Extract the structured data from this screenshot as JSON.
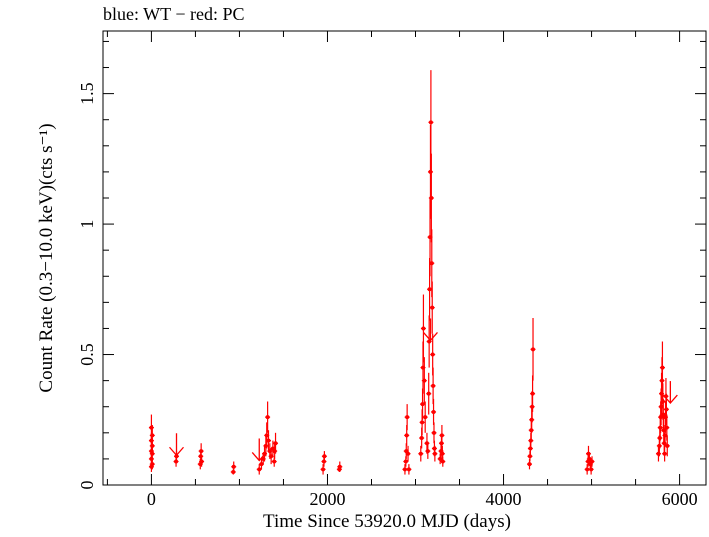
{
  "chart_data": {
    "type": "scatter",
    "title": "blue: WT − red: PC",
    "xlabel": "Time Since 53920.0 MJD (days)",
    "ylabel": "Count Rate (0.3−10.0 keV)(cts s⁻¹)",
    "xlim": [
      -550,
      6300
    ],
    "ylim": [
      0,
      1.74
    ],
    "x_ticks": [
      0,
      2000,
      4000,
      6000
    ],
    "x_tick_labels": [
      "0",
      "2000",
      "4000",
      "6000"
    ],
    "y_ticks": [
      0,
      0.5,
      1,
      1.5
    ],
    "y_tick_labels": [
      "0",
      "0.5",
      "1",
      "1.5"
    ],
    "grid": false,
    "colors": {
      "PC": "#ff0000",
      "WT": "#0000ff"
    },
    "series": [
      {
        "name": "PC",
        "color": "#ff0000",
        "points": [
          [
            0,
            0.07,
            0.02
          ],
          [
            0,
            0.1,
            0.02
          ],
          [
            0,
            0.13,
            0.03
          ],
          [
            0,
            0.17,
            0.03
          ],
          [
            0,
            0.22,
            0.05
          ],
          [
            10,
            0.08,
            0.02
          ],
          [
            10,
            0.12,
            0.03
          ],
          [
            10,
            0.15,
            0.03
          ],
          [
            10,
            0.19,
            0.04
          ],
          [
            280,
            0.09,
            0.02
          ],
          [
            285,
            0.11,
            0.02
          ],
          [
            555,
            0.08,
            0.02
          ],
          [
            560,
            0.11,
            0.02
          ],
          [
            565,
            0.13,
            0.03
          ],
          [
            570,
            0.09,
            0.02
          ],
          [
            930,
            0.05,
            0.01
          ],
          [
            935,
            0.07,
            0.02
          ],
          [
            1225,
            0.06,
            0.02
          ],
          [
            1250,
            0.08,
            0.02
          ],
          [
            1270,
            0.1,
            0.02
          ],
          [
            1285,
            0.12,
            0.03
          ],
          [
            1300,
            0.15,
            0.04
          ],
          [
            1310,
            0.19,
            0.05
          ],
          [
            1320,
            0.26,
            0.06
          ],
          [
            1330,
            0.17,
            0.04
          ],
          [
            1345,
            0.13,
            0.03
          ],
          [
            1360,
            0.11,
            0.03
          ],
          [
            1380,
            0.14,
            0.03
          ],
          [
            1395,
            0.09,
            0.02
          ],
          [
            1400,
            0.13,
            0.03
          ],
          [
            1410,
            0.16,
            0.04
          ],
          [
            1950,
            0.06,
            0.02
          ],
          [
            1960,
            0.09,
            0.02
          ],
          [
            1965,
            0.11,
            0.02
          ],
          [
            2135,
            0.06,
            0.01
          ],
          [
            2140,
            0.07,
            0.02
          ],
          [
            2880,
            0.06,
            0.02
          ],
          [
            2890,
            0.09,
            0.02
          ],
          [
            2895,
            0.13,
            0.03
          ],
          [
            2900,
            0.19,
            0.04
          ],
          [
            2905,
            0.26,
            0.05
          ],
          [
            2915,
            0.12,
            0.03
          ],
          [
            2925,
            0.06,
            0.02
          ],
          [
            3060,
            0.12,
            0.03
          ],
          [
            3070,
            0.18,
            0.04
          ],
          [
            3075,
            0.24,
            0.05
          ],
          [
            3080,
            0.31,
            0.06
          ],
          [
            3085,
            0.45,
            0.1
          ],
          [
            3090,
            0.6,
            0.13
          ],
          [
            3100,
            0.4,
            0.09
          ],
          [
            3110,
            0.26,
            0.06
          ],
          [
            3130,
            0.16,
            0.04
          ],
          [
            3140,
            0.13,
            0.03
          ],
          [
            3150,
            0.35,
            0.08
          ],
          [
            3155,
            0.55,
            0.1
          ],
          [
            3160,
            0.75,
            0.12
          ],
          [
            3165,
            0.95,
            0.15
          ],
          [
            3170,
            1.2,
            0.18
          ],
          [
            3175,
            1.39,
            0.2
          ],
          [
            3180,
            1.1,
            0.17
          ],
          [
            3185,
            0.85,
            0.13
          ],
          [
            3190,
            0.68,
            0.1
          ],
          [
            3195,
            0.5,
            0.08
          ],
          [
            3200,
            0.38,
            0.07
          ],
          [
            3205,
            0.28,
            0.05
          ],
          [
            3210,
            0.2,
            0.04
          ],
          [
            3215,
            0.14,
            0.03
          ],
          [
            3220,
            0.12,
            0.03
          ],
          [
            3280,
            0.1,
            0.02
          ],
          [
            3290,
            0.13,
            0.03
          ],
          [
            3295,
            0.16,
            0.03
          ],
          [
            3300,
            0.19,
            0.04
          ],
          [
            3305,
            0.12,
            0.03
          ],
          [
            3310,
            0.09,
            0.02
          ],
          [
            4295,
            0.08,
            0.02
          ],
          [
            4300,
            0.11,
            0.02
          ],
          [
            4305,
            0.14,
            0.03
          ],
          [
            4310,
            0.17,
            0.03
          ],
          [
            4315,
            0.21,
            0.04
          ],
          [
            4320,
            0.25,
            0.05
          ],
          [
            4325,
            0.3,
            0.06
          ],
          [
            4330,
            0.35,
            0.07
          ],
          [
            4335,
            0.52,
            0.12
          ],
          [
            4950,
            0.06,
            0.02
          ],
          [
            4960,
            0.09,
            0.02
          ],
          [
            4965,
            0.12,
            0.03
          ],
          [
            4975,
            0.1,
            0.02
          ],
          [
            4985,
            0.08,
            0.02
          ],
          [
            4995,
            0.06,
            0.02
          ],
          [
            5005,
            0.09,
            0.02
          ],
          [
            5760,
            0.12,
            0.03
          ],
          [
            5770,
            0.15,
            0.04
          ],
          [
            5775,
            0.18,
            0.04
          ],
          [
            5780,
            0.22,
            0.05
          ],
          [
            5785,
            0.26,
            0.06
          ],
          [
            5790,
            0.3,
            0.07
          ],
          [
            5795,
            0.35,
            0.08
          ],
          [
            5800,
            0.4,
            0.09
          ],
          [
            5805,
            0.45,
            0.1
          ],
          [
            5810,
            0.32,
            0.07
          ],
          [
            5815,
            0.27,
            0.06
          ],
          [
            5820,
            0.21,
            0.05
          ],
          [
            5825,
            0.16,
            0.04
          ],
          [
            5830,
            0.12,
            0.03
          ],
          [
            5835,
            0.19,
            0.04
          ],
          [
            5840,
            0.26,
            0.06
          ],
          [
            5845,
            0.34,
            0.07
          ],
          [
            5850,
            0.29,
            0.06
          ],
          [
            5855,
            0.22,
            0.05
          ],
          [
            5860,
            0.15,
            0.04
          ]
        ]
      }
    ],
    "upper_limits": [
      {
        "x": 285,
        "y": 0.16
      },
      {
        "x": 1225,
        "y": 0.14
      },
      {
        "x": 3170,
        "y": 0.6
      },
      {
        "x": 5895,
        "y": 0.36
      }
    ]
  }
}
